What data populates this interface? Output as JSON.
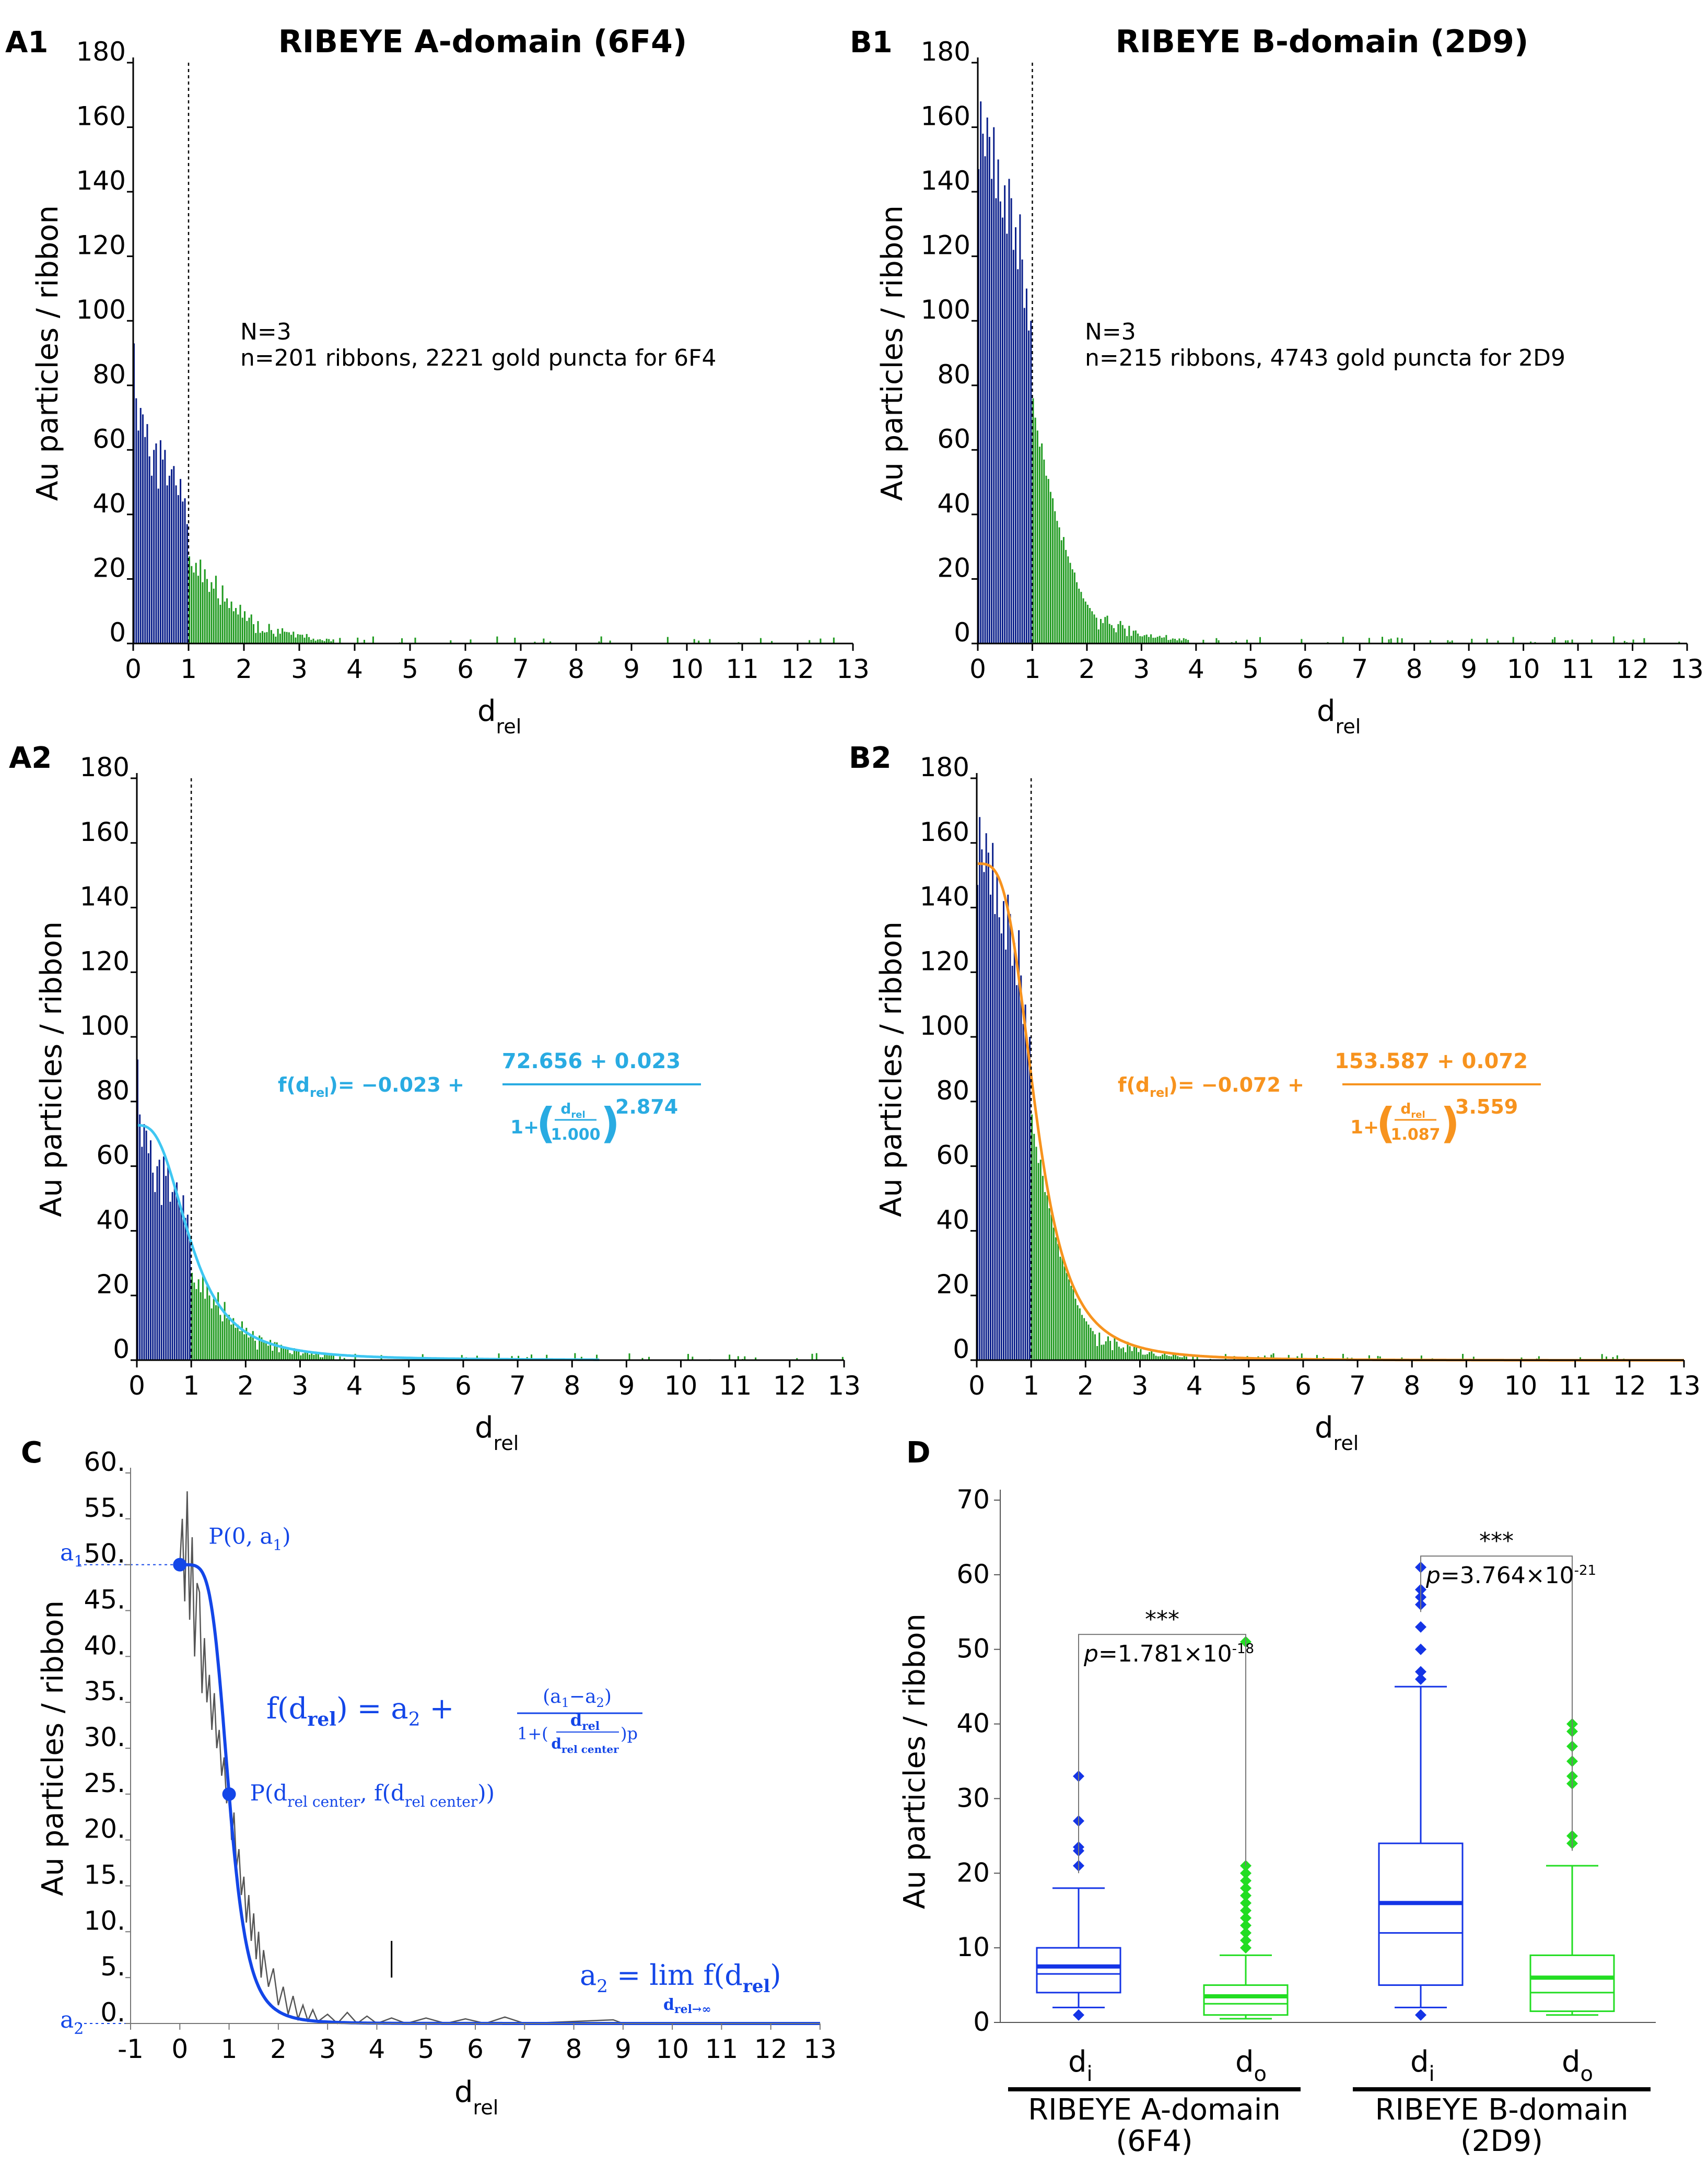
{
  "colors": {
    "inner_bar": "#0a1f8a",
    "outer_bar": "#1f9a1f",
    "fit_A": "#3fc7f2",
    "formula_A": "#29abe2",
    "fit_B": "#f7931e",
    "formula_B": "#f7931e",
    "panelC_curve": "#1346e8",
    "box_inner": "#1434e6",
    "box_outer": "#22dd22",
    "raw_trace": "#555555"
  },
  "chart_data": [
    {
      "id": "A1",
      "panel_label": "A1",
      "type": "bar",
      "title": "RIBEYE A-domain (6F4)",
      "xlabel": "d",
      "xlabel_sub": "rel",
      "ylabel": "Au particles / ribbon",
      "xlim": [
        0,
        13
      ],
      "ylim": [
        0,
        180
      ],
      "xticks": [
        "0",
        "1",
        "2",
        "3",
        "4",
        "5",
        "6",
        "7",
        "8",
        "9",
        "10",
        "11",
        "12",
        "13"
      ],
      "yticks": [
        "0",
        "20",
        "40",
        "60",
        "80",
        "100",
        "120",
        "140",
        "160",
        "180"
      ],
      "boundary": 1,
      "annotation": [
        "N=3",
        "n=201 ribbons, 2221 gold puncta for 6F4"
      ],
      "fit": null,
      "bins_inner": [
        93,
        76,
        66,
        73,
        71,
        64,
        68,
        58,
        52,
        60,
        62,
        48,
        63,
        57,
        60,
        49,
        52,
        54,
        55,
        49,
        46,
        51,
        44,
        45,
        37
      ],
      "bins_outer_head": [
        27,
        24,
        22,
        25,
        21,
        26,
        19,
        23,
        20,
        16,
        19,
        17,
        21,
        14,
        12,
        18,
        13,
        14,
        11,
        13,
        10,
        11,
        9,
        12,
        8,
        10,
        7,
        8,
        9,
        6
      ]
    },
    {
      "id": "B1",
      "panel_label": "B1",
      "type": "bar",
      "title": "RIBEYE B-domain (2D9)",
      "xlabel": "d",
      "xlabel_sub": "rel",
      "ylabel": "Au particles / ribbon",
      "xlim": [
        0,
        13
      ],
      "ylim": [
        0,
        180
      ],
      "xticks": [
        "0",
        "1",
        "2",
        "3",
        "4",
        "5",
        "6",
        "7",
        "8",
        "9",
        "10",
        "11",
        "12",
        "13"
      ],
      "yticks": [
        "0",
        "20",
        "40",
        "60",
        "80",
        "100",
        "120",
        "140",
        "160",
        "180"
      ],
      "boundary": 1,
      "annotation": [
        "N=3",
        "n=215 ribbons, 4743 gold puncta for 2D9"
      ],
      "fit": null,
      "bins_inner": [
        147,
        168,
        158,
        151,
        163,
        157,
        144,
        160,
        138,
        150,
        137,
        132,
        142,
        127,
        144,
        138,
        122,
        129,
        116,
        133,
        119,
        104,
        110,
        97,
        100
      ],
      "bins_outer_head": [
        76,
        70,
        66,
        61,
        62,
        57,
        52,
        51,
        47,
        45,
        41,
        38,
        36,
        32,
        33,
        29,
        27,
        25,
        23,
        22,
        19,
        17,
        16,
        14,
        13,
        12,
        11,
        10,
        9,
        8
      ]
    },
    {
      "id": "A2",
      "panel_label": "A2",
      "type": "bar",
      "title": "",
      "xlabel": "d",
      "xlabel_sub": "rel",
      "ylabel": "Au particles / ribbon",
      "xlim": [
        0,
        13
      ],
      "ylim": [
        0,
        180
      ],
      "xticks": [
        "0",
        "1",
        "2",
        "3",
        "4",
        "5",
        "6",
        "7",
        "8",
        "9",
        "10",
        "11",
        "12",
        "13"
      ],
      "yticks": [
        "0",
        "20",
        "40",
        "60",
        "80",
        "100",
        "120",
        "140",
        "160",
        "180"
      ],
      "boundary": 1,
      "annotation": null,
      "fit": {
        "a2": -0.023,
        "a1": 72.656,
        "center": 1.0,
        "p": 2.874,
        "color_key": "fit_A",
        "xmax": 8.5
      },
      "formula": {
        "lhs_f": "f(d",
        "lhs_sub": "rel",
        "lhs_end": ")= ",
        "const": "−0.023 +",
        "numerator": "72.656 + 0.023",
        "den_left": "1+",
        "inner_num": "d",
        "inner_num_sub": "rel",
        "inner_den": "1.000",
        "exponent": "2.874",
        "color_key": "formula_A"
      },
      "bins_inner": [
        93,
        76,
        66,
        73,
        71,
        64,
        68,
        58,
        52,
        60,
        62,
        48,
        63,
        57,
        60,
        49,
        52,
        54,
        55,
        49,
        46,
        51,
        44,
        45,
        37
      ],
      "bins_outer_head": [
        27,
        24,
        22,
        25,
        21,
        26,
        19,
        23,
        20,
        16,
        19,
        17,
        21,
        14,
        12,
        18,
        13,
        14,
        11,
        13,
        10,
        11,
        9,
        12,
        8,
        10,
        7,
        8,
        9,
        6
      ]
    },
    {
      "id": "B2",
      "panel_label": "B2",
      "type": "bar",
      "title": "",
      "xlabel": "d",
      "xlabel_sub": "rel",
      "ylabel": "Au particles / ribbon",
      "xlim": [
        0,
        13
      ],
      "ylim": [
        0,
        180
      ],
      "xticks": [
        "0",
        "1",
        "2",
        "3",
        "4",
        "5",
        "6",
        "7",
        "8",
        "9",
        "10",
        "11",
        "12",
        "13"
      ],
      "yticks": [
        "0",
        "20",
        "40",
        "60",
        "80",
        "100",
        "120",
        "140",
        "160",
        "180"
      ],
      "boundary": 1,
      "annotation": null,
      "fit": {
        "a2": -0.072,
        "a1": 153.587,
        "center": 1.087,
        "p": 3.559,
        "color_key": "fit_B",
        "xmax": 13
      },
      "formula": {
        "lhs_f": "f(d",
        "lhs_sub": "rel",
        "lhs_end": ")= ",
        "const": "−0.072 +",
        "numerator": "153.587 + 0.072",
        "den_left": "1+",
        "inner_num": "d",
        "inner_num_sub": "rel",
        "inner_den": "1.087",
        "exponent": "3.559",
        "color_key": "formula_B"
      },
      "bins_inner": [
        147,
        168,
        158,
        151,
        163,
        157,
        144,
        160,
        138,
        150,
        137,
        132,
        142,
        127,
        144,
        138,
        122,
        129,
        116,
        133,
        119,
        104,
        110,
        97,
        100
      ],
      "bins_outer_head": [
        76,
        70,
        66,
        61,
        62,
        57,
        52,
        51,
        47,
        45,
        41,
        38,
        36,
        32,
        33,
        29,
        27,
        25,
        23,
        22,
        19,
        17,
        16,
        14,
        13,
        12,
        11,
        10,
        9,
        8
      ]
    },
    {
      "id": "C",
      "panel_label": "C",
      "type": "line",
      "title": "",
      "xlabel": "d",
      "xlabel_sub": "rel",
      "ylabel": "Au particles / ribbon",
      "xlim": [
        -1,
        13
      ],
      "ylim": [
        0,
        60
      ],
      "xticks": [
        "-1",
        "0",
        "1",
        "2",
        "3",
        "4",
        "5",
        "6",
        "7",
        "8",
        "9",
        "10",
        "11",
        "12",
        "13"
      ],
      "yticks": [
        "0.",
        "5.",
        "10.",
        "15.",
        "20.",
        "25.",
        "30.",
        "35.",
        "40.",
        "45.",
        "50.",
        "55.",
        "60."
      ],
      "fit": {
        "a1": 50,
        "a2": 0,
        "center": 1.0,
        "p": 5.2
      },
      "points": [
        {
          "name": "point-p0",
          "x": 0,
          "y": 50,
          "label_main": "P(0, a",
          "label_sub": "1",
          "label_end": ")"
        },
        {
          "name": "point-pcenter",
          "x": 1,
          "y": 25,
          "label_main": "P(d",
          "label_sub": "rel center",
          "label_mid": ", f(d",
          "label_sub2": "rel center",
          "label_end": "))"
        }
      ],
      "a1_label": "a",
      "a1_sub": "1",
      "a2_label": "a",
      "a2_sub": "2",
      "formula": {
        "lhs": "f(d",
        "lhs_sub": "rel",
        "lhs_end": ")  =  a",
        "lhs_sub2": "2",
        "plus": " +",
        "numerator": "(a",
        "num_sub1": "1",
        "num_mid": "−a",
        "num_sub2": "2",
        "num_end": ")",
        "den": "1+(",
        "den_frac_num": "d",
        "den_frac_num_sub": "rel",
        "den_frac_den": "d",
        "den_frac_den_sub": "rel center",
        "den_end": ")p"
      },
      "limit": {
        "lhs": "a",
        "lhs_sub": "2",
        "eq": " = ",
        "lim": "lim",
        "under": "d",
        "under_sub": "rel→∞",
        "rhs": "f(d",
        "rhs_sub": "rel",
        "rhs_end": ")"
      },
      "raw_trace": [
        [
          0,
          50
        ],
        [
          0.05,
          55
        ],
        [
          0.1,
          46
        ],
        [
          0.15,
          58
        ],
        [
          0.2,
          44
        ],
        [
          0.25,
          53
        ],
        [
          0.3,
          40
        ],
        [
          0.35,
          48
        ],
        [
          0.4,
          47
        ],
        [
          0.45,
          36
        ],
        [
          0.5,
          42
        ],
        [
          0.55,
          35
        ],
        [
          0.6,
          38
        ],
        [
          0.65,
          32
        ],
        [
          0.7,
          36
        ],
        [
          0.75,
          30
        ],
        [
          0.8,
          32
        ],
        [
          0.85,
          27
        ],
        [
          0.9,
          29
        ],
        [
          0.95,
          24
        ],
        [
          1.0,
          26
        ],
        [
          1.05,
          20
        ],
        [
          1.1,
          23
        ],
        [
          1.15,
          17
        ],
        [
          1.2,
          19
        ],
        [
          1.25,
          14
        ],
        [
          1.3,
          16
        ],
        [
          1.35,
          11
        ],
        [
          1.4,
          14
        ],
        [
          1.45,
          9
        ],
        [
          1.5,
          12
        ],
        [
          1.55,
          7
        ],
        [
          1.6,
          10
        ],
        [
          1.65,
          5
        ],
        [
          1.7,
          8
        ],
        [
          1.8,
          4
        ],
        [
          1.9,
          6
        ],
        [
          2.0,
          2
        ],
        [
          2.1,
          4
        ],
        [
          2.2,
          1
        ],
        [
          2.3,
          3
        ],
        [
          2.4,
          0.5
        ],
        [
          2.5,
          2
        ],
        [
          2.6,
          0.3
        ],
        [
          2.7,
          1.5
        ],
        [
          2.8,
          0.2
        ],
        [
          3.0,
          1
        ],
        [
          3.2,
          0
        ],
        [
          3.4,
          1.2
        ],
        [
          3.6,
          0
        ],
        [
          3.8,
          0.8
        ],
        [
          4.0,
          0
        ],
        [
          4.3,
          0.6
        ],
        [
          4.6,
          0
        ],
        [
          5.0,
          0.6
        ],
        [
          5.4,
          0
        ],
        [
          5.8,
          0.5
        ],
        [
          6.2,
          0
        ],
        [
          6.6,
          0.7
        ],
        [
          7.0,
          0
        ],
        [
          8.8,
          0.4
        ],
        [
          9.0,
          0
        ]
      ],
      "spike": {
        "x": 4.3,
        "y0": 5,
        "y1": 9
      }
    },
    {
      "id": "D",
      "panel_label": "D",
      "type": "box",
      "title": "",
      "ylabel": "Au particles / ribbon",
      "ylim": [
        0,
        70
      ],
      "yticks": [
        "0",
        "10",
        "20",
        "30",
        "40",
        "50",
        "60",
        "70"
      ],
      "groups": [
        "RIBEYE A-domain",
        "RIBEYE B-domain"
      ],
      "group_sub": [
        "(6F4)",
        "(2D9)"
      ],
      "boxes": [
        {
          "name": "box-a-inner",
          "label": "d",
          "label_sub": "i",
          "color_key": "box_inner",
          "min": 2,
          "q1": 4,
          "median": 7.5,
          "mean": 6.5,
          "q3": 10,
          "max": 18,
          "outliers": [
            1,
            21,
            23,
            23.5,
            27,
            33
          ]
        },
        {
          "name": "box-a-outer",
          "label": "d",
          "label_sub": "o",
          "color_key": "box_outer",
          "min": 0.5,
          "q1": 1,
          "median": 3.5,
          "mean": 2.5,
          "q3": 5,
          "max": 9,
          "outliers": [
            10,
            11,
            12,
            13,
            14,
            15,
            16,
            17,
            18,
            19,
            20,
            21,
            51
          ]
        },
        {
          "name": "box-b-inner",
          "label": "d",
          "label_sub": "i",
          "color_key": "box_inner",
          "min": 2,
          "q1": 5,
          "median": 16,
          "mean": 12,
          "q3": 24,
          "max": 45,
          "outliers": [
            1,
            46,
            47,
            50,
            53,
            56,
            57,
            58,
            61
          ]
        },
        {
          "name": "box-b-outer",
          "label": "d",
          "label_sub": "o",
          "color_key": "box_outer",
          "min": 1,
          "q1": 1.5,
          "median": 6,
          "mean": 4,
          "q3": 9,
          "max": 21,
          "outliers": [
            24,
            25,
            32,
            33,
            35,
            37,
            39,
            40
          ]
        }
      ],
      "significance": [
        {
          "name": "sig-a",
          "pair": [
            0,
            1
          ],
          "y": 50.5,
          "stars": "***",
          "p_label": "p",
          "p_text": "=1.781×10",
          "p_exp": "-18"
        },
        {
          "name": "sig-b",
          "pair": [
            2,
            3
          ],
          "y": 60,
          "stars": "***",
          "p_label": "p",
          "p_text": "=3.764×10",
          "p_exp": "-21"
        }
      ]
    }
  ]
}
